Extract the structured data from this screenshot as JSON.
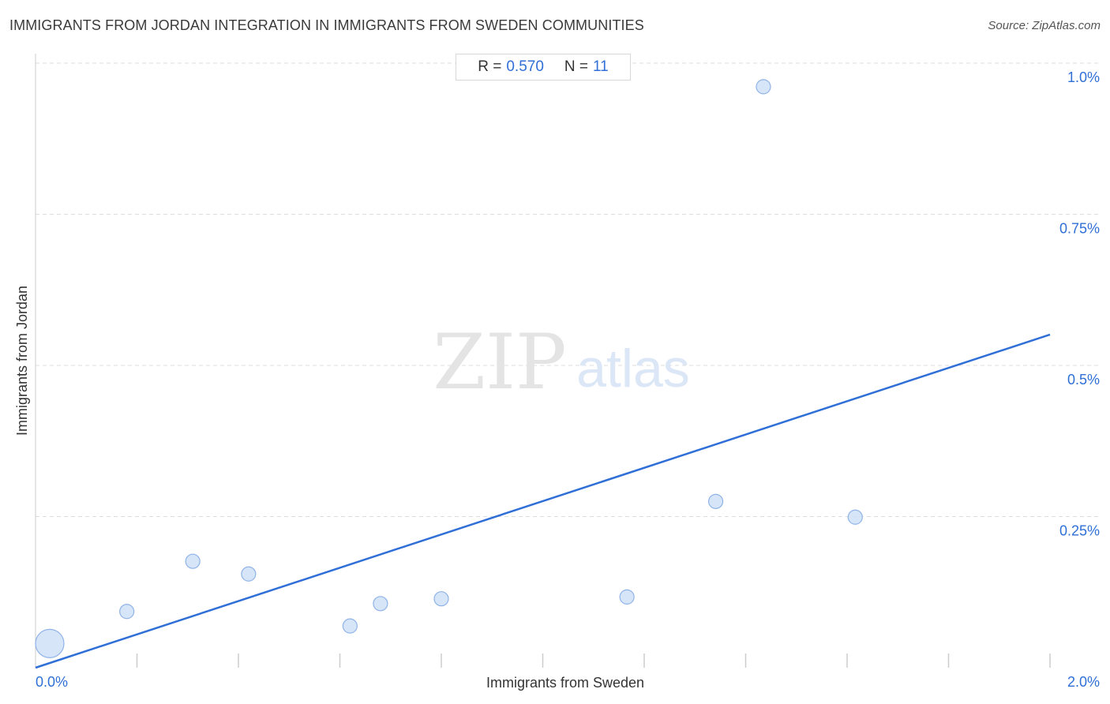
{
  "header": {
    "title": "IMMIGRANTS FROM JORDAN INTEGRATION IN IMMIGRANTS FROM SWEDEN COMMUNITIES",
    "source_label": "Source: ",
    "source_value": "ZipAtlas.com"
  },
  "stats": {
    "r_label": "R =",
    "r_value": "0.570",
    "n_label": "N =",
    "n_value": "11"
  },
  "watermark": {
    "zip": "ZIP",
    "atlas": "atlas"
  },
  "colors": {
    "accent": "#2f6fd6",
    "point_fill": "#cfe0f7",
    "point_stroke": "#8fb3e8",
    "grid": "#dddddd",
    "axis": "#cccccc"
  },
  "chart_data": {
    "type": "scatter",
    "title": "IMMIGRANTS FROM JORDAN INTEGRATION IN IMMIGRANTS FROM SWEDEN COMMUNITIES",
    "xlabel": "Immigrants from Sweden",
    "ylabel": "Immigrants from Jordan",
    "xlim": [
      0,
      2.0
    ],
    "ylim": [
      0,
      1.0
    ],
    "x_tick_labels": [
      {
        "value": 0,
        "label": "0.0%"
      },
      {
        "value": 2.0,
        "label": "2.0%"
      }
    ],
    "y_tick_labels": [
      {
        "value": 0.25,
        "label": "0.25%"
      },
      {
        "value": 0.5,
        "label": "0.5%"
      },
      {
        "value": 0.75,
        "label": "0.75%"
      },
      {
        "value": 1.0,
        "label": "1.0%"
      }
    ],
    "grid": true,
    "points": [
      {
        "x": 0.028,
        "y": 0.04,
        "size": "large"
      },
      {
        "x": 0.18,
        "y": 0.093,
        "size": "small"
      },
      {
        "x": 0.31,
        "y": 0.176,
        "size": "small"
      },
      {
        "x": 0.42,
        "y": 0.155,
        "size": "small"
      },
      {
        "x": 0.62,
        "y": 0.069,
        "size": "small"
      },
      {
        "x": 0.68,
        "y": 0.106,
        "size": "small"
      },
      {
        "x": 0.8,
        "y": 0.114,
        "size": "small"
      },
      {
        "x": 1.166,
        "y": 0.117,
        "size": "small"
      },
      {
        "x": 1.341,
        "y": 0.275,
        "size": "small"
      },
      {
        "x": 1.435,
        "y": 0.961,
        "size": "small"
      },
      {
        "x": 1.616,
        "y": 0.249,
        "size": "small"
      }
    ],
    "trendline": {
      "x": [
        0,
        2.0
      ],
      "y": [
        0.0,
        0.551
      ]
    },
    "stats": {
      "r": 0.57,
      "n": 11
    }
  }
}
